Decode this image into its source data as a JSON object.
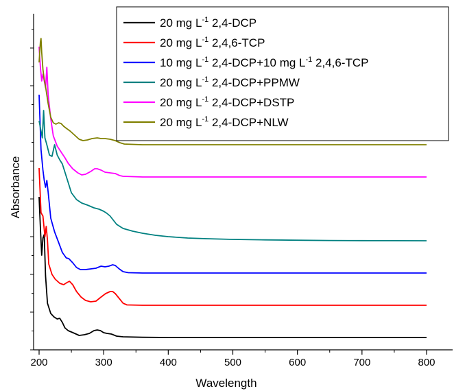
{
  "chart_data": {
    "type": "line",
    "xlabel": "Wavelength",
    "ylabel": "Absorbance",
    "xlim": [
      200,
      800
    ],
    "x_ticks": [
      "200",
      "300",
      "400",
      "500",
      "600",
      "700",
      "800"
    ],
    "y_tick_labels_shown": false,
    "grid": false,
    "legend_position": "top-right",
    "series": [
      {
        "name": "20 mg L-1 2,4-DCP",
        "legend": {
          "pre": "20 mg L",
          "sup1": "-1",
          "post1": " 2,4-DCP"
        },
        "color": "#000000",
        "offset": 0,
        "points": [
          [
            200,
            205
          ],
          [
            202,
            160
          ],
          [
            204,
            120
          ],
          [
            206,
            145
          ],
          [
            208,
            150
          ],
          [
            210,
            90
          ],
          [
            213,
            50
          ],
          [
            218,
            35
          ],
          [
            223,
            30
          ],
          [
            228,
            27
          ],
          [
            232,
            28
          ],
          [
            236,
            22
          ],
          [
            240,
            14
          ],
          [
            245,
            10
          ],
          [
            250,
            8
          ],
          [
            255,
            6
          ],
          [
            262,
            3
          ],
          [
            270,
            4
          ],
          [
            278,
            6
          ],
          [
            285,
            10
          ],
          [
            290,
            11
          ],
          [
            295,
            10
          ],
          [
            300,
            7
          ],
          [
            305,
            6
          ],
          [
            312,
            5
          ],
          [
            320,
            2
          ],
          [
            330,
            1
          ],
          [
            360,
            0.3
          ],
          [
            400,
            0
          ],
          [
            800,
            0
          ]
        ]
      },
      {
        "name": "20 mg L-1 2,4,6-TCP",
        "legend": {
          "pre": "20 mg L",
          "sup1": "-1",
          "post1": " 2,4,6-TCP"
        },
        "color": "#ff0000",
        "offset": 47,
        "points": [
          [
            200,
            200
          ],
          [
            203,
            135
          ],
          [
            206,
            130
          ],
          [
            209,
            100
          ],
          [
            211,
            115
          ],
          [
            213,
            95
          ],
          [
            215,
            60
          ],
          [
            220,
            45
          ],
          [
            225,
            38
          ],
          [
            232,
            32
          ],
          [
            238,
            30
          ],
          [
            243,
            33
          ],
          [
            247,
            35
          ],
          [
            252,
            30
          ],
          [
            258,
            20
          ],
          [
            265,
            12
          ],
          [
            272,
            7
          ],
          [
            280,
            5
          ],
          [
            288,
            6
          ],
          [
            296,
            12
          ],
          [
            303,
            17
          ],
          [
            310,
            20
          ],
          [
            314,
            20
          ],
          [
            318,
            17
          ],
          [
            324,
            10
          ],
          [
            330,
            3
          ],
          [
            336,
            0.5
          ],
          [
            360,
            0
          ],
          [
            800,
            0
          ]
        ]
      },
      {
        "name": "10 mg L-1 2,4-DCP+10 mg L-1 2,4,6-TCP",
        "legend": {
          "pre": "10 mg L",
          "sup1": "-1",
          "post1": " 2,4-DCP+10 mg L",
          "sup2": "-1",
          "post2": " 2,4,6-TCP"
        },
        "color": "#0000ff",
        "offset": 94,
        "points": [
          [
            200,
            260
          ],
          [
            203,
            180
          ],
          [
            206,
            150
          ],
          [
            208,
            135
          ],
          [
            210,
            125
          ],
          [
            212,
            135
          ],
          [
            214,
            118
          ],
          [
            218,
            80
          ],
          [
            224,
            60
          ],
          [
            230,
            45
          ],
          [
            236,
            30
          ],
          [
            242,
            22
          ],
          [
            246,
            21
          ],
          [
            252,
            15
          ],
          [
            258,
            8
          ],
          [
            264,
            5
          ],
          [
            272,
            5
          ],
          [
            280,
            6
          ],
          [
            288,
            7
          ],
          [
            296,
            10
          ],
          [
            302,
            9
          ],
          [
            308,
            10
          ],
          [
            314,
            12
          ],
          [
            318,
            11
          ],
          [
            324,
            6
          ],
          [
            330,
            2
          ],
          [
            338,
            0.5
          ],
          [
            360,
            0
          ],
          [
            800,
            0
          ]
        ]
      },
      {
        "name": "20 mg L-1 2,4-DCP+PPMW",
        "legend": {
          "pre": "20 mg L",
          "sup1": "-1",
          "post1": " 2,4-DCP+PPMW"
        },
        "color": "#008080",
        "offset": 141,
        "points": [
          [
            200,
            175
          ],
          [
            203,
            160
          ],
          [
            205,
            150
          ],
          [
            207,
            190
          ],
          [
            209,
            150
          ],
          [
            212,
            140
          ],
          [
            216,
            125
          ],
          [
            220,
            123
          ],
          [
            224,
            140
          ],
          [
            228,
            125
          ],
          [
            232,
            118
          ],
          [
            236,
            112
          ],
          [
            240,
            100
          ],
          [
            245,
            85
          ],
          [
            250,
            70
          ],
          [
            258,
            60
          ],
          [
            266,
            55
          ],
          [
            275,
            52
          ],
          [
            285,
            48
          ],
          [
            293,
            46
          ],
          [
            300,
            43
          ],
          [
            305,
            40
          ],
          [
            310,
            36
          ],
          [
            315,
            30
          ],
          [
            320,
            24
          ],
          [
            330,
            18
          ],
          [
            345,
            14
          ],
          [
            360,
            11
          ],
          [
            380,
            8
          ],
          [
            400,
            6
          ],
          [
            430,
            4
          ],
          [
            460,
            3
          ],
          [
            500,
            2
          ],
          [
            550,
            1.3
          ],
          [
            600,
            0.8
          ],
          [
            650,
            0.4
          ],
          [
            700,
            0.2
          ],
          [
            750,
            0.1
          ],
          [
            800,
            0
          ]
        ]
      },
      {
        "name": "20 mg L-1 2,4-DCP+DSTP",
        "legend": {
          "pre": "20 mg L",
          "sup1": "-1",
          "post1": " 2,4-DCP+DSTP"
        },
        "color": "#ff00ff",
        "offset": 234,
        "points": [
          [
            200,
            190
          ],
          [
            202,
            160
          ],
          [
            204,
            140
          ],
          [
            206,
            150
          ],
          [
            208,
            140
          ],
          [
            210,
            130
          ],
          [
            212,
            160
          ],
          [
            214,
            120
          ],
          [
            218,
            85
          ],
          [
            222,
            60
          ],
          [
            228,
            45
          ],
          [
            235,
            35
          ],
          [
            240,
            28
          ],
          [
            245,
            20
          ],
          [
            252,
            12
          ],
          [
            260,
            6
          ],
          [
            266,
            3
          ],
          [
            272,
            4
          ],
          [
            280,
            8
          ],
          [
            286,
            12
          ],
          [
            290,
            12
          ],
          [
            296,
            10
          ],
          [
            302,
            7
          ],
          [
            310,
            6
          ],
          [
            318,
            5
          ],
          [
            325,
            2
          ],
          [
            330,
            1
          ],
          [
            360,
            0
          ],
          [
            800,
            0
          ]
        ]
      },
      {
        "name": "20 mg L-1 2,4-DCP+NLW",
        "legend": {
          "pre": "20 mg L",
          "sup1": "-1",
          "post1": " 2,4-DCP+NLW"
        },
        "color": "#808000",
        "offset": 281,
        "points": [
          [
            200,
            120
          ],
          [
            202,
            150
          ],
          [
            203,
            155
          ],
          [
            204,
            135
          ],
          [
            206,
            110
          ],
          [
            208,
            95
          ],
          [
            210,
            85
          ],
          [
            214,
            60
          ],
          [
            218,
            40
          ],
          [
            222,
            32
          ],
          [
            226,
            30
          ],
          [
            230,
            32
          ],
          [
            234,
            31
          ],
          [
            238,
            27
          ],
          [
            242,
            24
          ],
          [
            248,
            20
          ],
          [
            255,
            14
          ],
          [
            262,
            8
          ],
          [
            268,
            6
          ],
          [
            275,
            7
          ],
          [
            282,
            9
          ],
          [
            290,
            10
          ],
          [
            296,
            9
          ],
          [
            302,
            9
          ],
          [
            310,
            8
          ],
          [
            318,
            6
          ],
          [
            325,
            3
          ],
          [
            332,
            1
          ],
          [
            360,
            0
          ],
          [
            800,
            0
          ]
        ]
      }
    ]
  }
}
